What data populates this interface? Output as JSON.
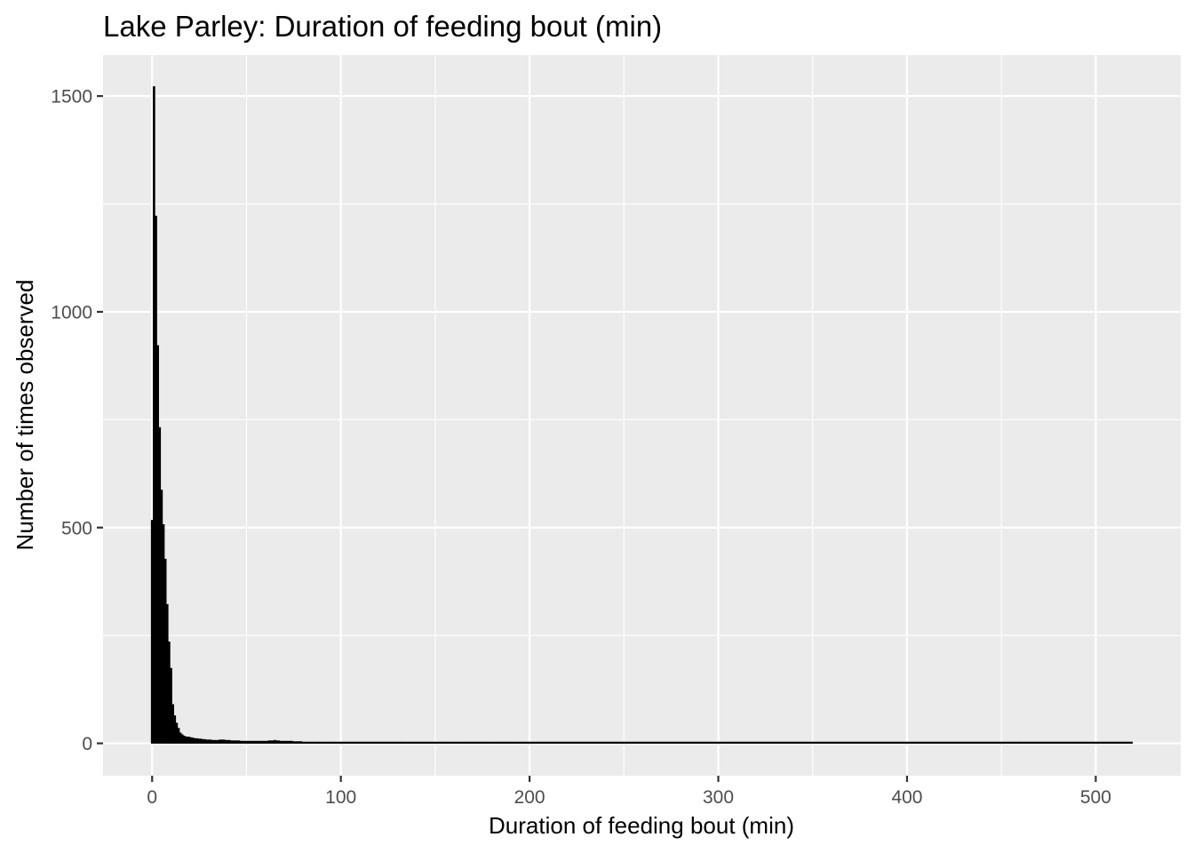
{
  "chart_data": {
    "type": "bar",
    "subtype": "histogram",
    "title": "Lake Parley: Duration of feeding bout (min)",
    "xlabel": "Duration of feeding bout (min)",
    "ylabel": "Number of times observed",
    "xlim": [
      -26,
      545
    ],
    "ylim": [
      -75,
      1595
    ],
    "x_ticks": [
      0,
      100,
      200,
      300,
      400,
      500
    ],
    "x_tick_labels": [
      "0",
      "100",
      "200",
      "300",
      "400",
      "500"
    ],
    "y_ticks": [
      0,
      500,
      1000,
      1500
    ],
    "y_tick_labels": [
      "0",
      "500",
      "1000",
      "1500"
    ],
    "grid": true,
    "legend": "none",
    "bar_color": "#000000",
    "panel_background": "#ebebeb",
    "bins": {
      "start": -0.5,
      "width": 1,
      "counts": [
        515,
        1520,
        1220,
        920,
        730,
        585,
        505,
        425,
        320,
        233,
        172,
        88,
        62,
        45,
        33,
        22,
        18,
        15,
        13,
        13,
        12,
        11,
        10,
        9,
        9,
        8,
        8,
        7,
        7,
        6,
        6,
        6,
        5,
        5,
        5,
        5,
        6,
        6,
        6,
        5,
        5,
        5,
        4,
        4,
        4,
        4,
        4,
        3,
        3,
        3,
        3,
        3,
        3,
        3,
        3,
        3,
        3,
        3,
        3,
        3,
        3,
        3,
        4,
        4,
        4,
        5,
        4,
        4,
        3,
        3,
        3,
        3,
        3,
        3,
        3,
        2,
        2,
        2,
        2,
        2
      ],
      "tail_start": 80,
      "tail_end": 520,
      "tail_count": 1
    }
  }
}
